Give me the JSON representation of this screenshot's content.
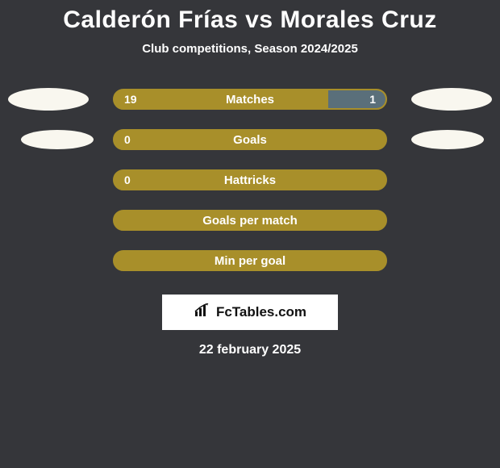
{
  "title": "Calderón Frías vs Morales Cruz",
  "subtitle": "Club competitions, Season 2024/2025",
  "rows": [
    {
      "label": "Matches",
      "left_val": "19",
      "right_val": "1",
      "left_pct": 79,
      "right_pct": 21,
      "right_color": "#5a6f7a",
      "show_vals": true,
      "ellipses": "large"
    },
    {
      "label": "Goals",
      "left_val": "0",
      "right_val": "",
      "left_pct": 100,
      "right_pct": 0,
      "show_vals": true,
      "ellipses": "small"
    },
    {
      "label": "Hattricks",
      "left_val": "0",
      "right_val": "",
      "left_pct": 100,
      "right_pct": 0,
      "show_vals": true,
      "ellipses": "none"
    },
    {
      "label": "Goals per match",
      "left_val": "",
      "right_val": "",
      "left_pct": 100,
      "right_pct": 0,
      "show_vals": false,
      "ellipses": "none"
    },
    {
      "label": "Min per goal",
      "left_val": "",
      "right_val": "",
      "left_pct": 100,
      "right_pct": 0,
      "show_vals": false,
      "ellipses": "none"
    }
  ],
  "brand": "FcTables.com",
  "date": "22 february 2025",
  "colors": {
    "bar_fill": "#a88f2a",
    "bar_border": "#a88f2a",
    "right_segment": "#5a6f7a",
    "bg": "#35363a",
    "ellipse": "#f9f7ef"
  }
}
